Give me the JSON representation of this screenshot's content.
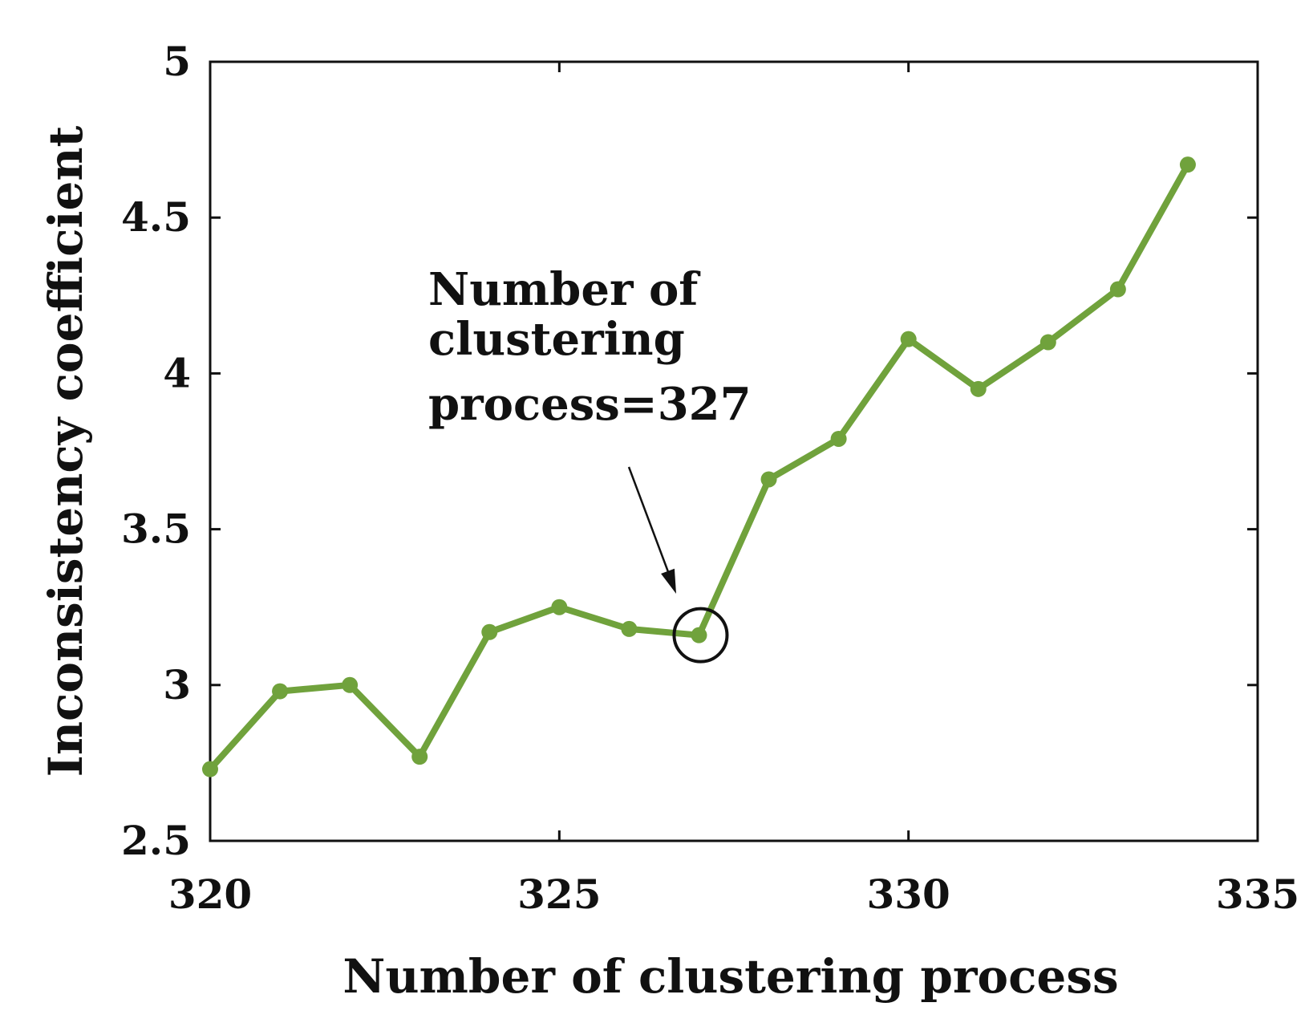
{
  "chart_data": {
    "type": "line",
    "title": "",
    "xlabel": "Number of clustering process",
    "ylabel": "Inconsistency coefficient",
    "xlim": [
      320,
      335
    ],
    "ylim": [
      2.5,
      5
    ],
    "xticks": [
      "320",
      "325",
      "330",
      "335"
    ],
    "yticks": [
      "2.5",
      "3",
      "3.5",
      "4",
      "4.5",
      "5"
    ],
    "grid": false,
    "line_color": "#70a23c",
    "series": [
      {
        "x": [
          320,
          321,
          322,
          323,
          324,
          325,
          326,
          327,
          328,
          329,
          330,
          331,
          332,
          333,
          334
        ],
        "y": [
          2.73,
          2.98,
          3.0,
          2.77,
          3.17,
          3.25,
          3.18,
          3.16,
          3.66,
          3.79,
          4.11,
          3.95,
          4.1,
          4.27,
          4.67
        ]
      }
    ],
    "annotation": {
      "lines": [
        "Number of",
        "clustering",
        "process=327"
      ],
      "target_x": 327,
      "target_y": 3.16
    }
  }
}
